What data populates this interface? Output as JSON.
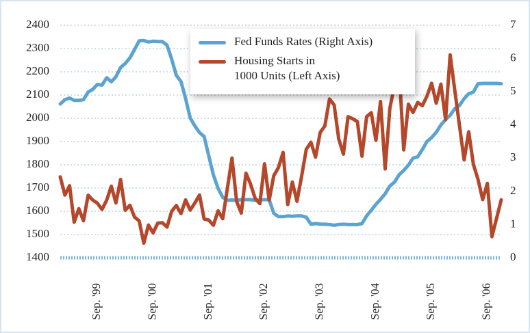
{
  "chart_data": {
    "type": "line",
    "categories": [
      null,
      null,
      null,
      null,
      null,
      null,
      null,
      null,
      "Sep. '99",
      null,
      null,
      null,
      null,
      null,
      null,
      null,
      null,
      null,
      null,
      null,
      "Sep. '00",
      null,
      null,
      null,
      null,
      null,
      null,
      null,
      null,
      null,
      null,
      null,
      "Sep. '01",
      null,
      null,
      null,
      null,
      null,
      null,
      null,
      null,
      null,
      null,
      null,
      "Sep. '02",
      null,
      null,
      null,
      null,
      null,
      null,
      null,
      null,
      null,
      null,
      null,
      "Sep. '03",
      null,
      null,
      null,
      null,
      null,
      null,
      null,
      null,
      null,
      null,
      null,
      "Sep. '04",
      null,
      null,
      null,
      null,
      null,
      null,
      null,
      null,
      null,
      null,
      null,
      "Sep. '05",
      null,
      null,
      null,
      null,
      null,
      null,
      null,
      null,
      null,
      null,
      null,
      "Sep. '06",
      null,
      null,
      null
    ],
    "series": [
      {
        "name": "Fed Funds Rates (Right Axis)",
        "color": "#5ba3d1",
        "axis": "y2",
        "values": [
          4.63,
          4.76,
          4.81,
          4.74,
          4.74,
          4.76,
          4.99,
          5.07,
          5.22,
          5.2,
          5.42,
          5.3,
          5.45,
          5.73,
          5.85,
          6.02,
          6.27,
          6.53,
          6.54,
          6.5,
          6.52,
          6.51,
          6.51,
          6.4,
          5.98,
          5.49,
          5.31,
          4.8,
          4.21,
          3.97,
          3.77,
          3.65,
          3.07,
          2.49,
          2.09,
          1.82,
          1.73,
          1.74,
          1.73,
          1.75,
          1.75,
          1.75,
          1.73,
          1.74,
          1.75,
          1.75,
          1.34,
          1.24,
          1.24,
          1.26,
          1.25,
          1.26,
          1.26,
          1.22,
          1.01,
          1.03,
          1.01,
          1.01,
          1.0,
          0.98,
          1.0,
          1.01,
          1.0,
          1.0,
          1.0,
          1.03,
          1.26,
          1.43,
          1.61,
          1.76,
          1.93,
          2.16,
          2.28,
          2.5,
          2.63,
          2.79,
          3.0,
          3.04,
          3.26,
          3.5,
          3.62,
          3.78,
          4.0,
          4.16,
          4.29,
          4.49,
          4.59,
          4.79,
          4.94,
          4.99,
          5.24,
          5.25,
          5.25,
          5.25,
          5.25,
          5.24
        ]
      },
      {
        "name": "Housing Starts in\n1000 Units (Left Axis)",
        "color": "#b5472b",
        "axis": "y",
        "values": [
          1748,
          1670,
          1710,
          1553,
          1611,
          1559,
          1669,
          1648,
          1635,
          1608,
          1648,
          1708,
          1636,
          1737,
          1604,
          1626,
          1575,
          1559,
          1463,
          1541,
          1507,
          1549,
          1551,
          1532,
          1600,
          1625,
          1590,
          1649,
          1605,
          1636,
          1670,
          1567,
          1562,
          1540,
          1602,
          1568,
          1698,
          1829,
          1642,
          1592,
          1764,
          1717,
          1655,
          1633,
          1804,
          1648,
          1753,
          1788,
          1853,
          1629,
          1726,
          1643,
          1751,
          1867,
          1897,
          1833,
          1939,
          1967,
          2083,
          2057,
          1911,
          1846,
          2007,
          1998,
          1986,
          1837,
          2007,
          2024,
          1905,
          2072,
          1782,
          2042,
          2144,
          2207,
          1864,
          2061,
          2025,
          2068,
          2054,
          2095,
          2151,
          2065,
          2147,
          1994,
          2273,
          2119,
          1969,
          1821,
          1942,
          1802,
          1737,
          1650,
          1720,
          1491,
          1570,
          1649
        ]
      }
    ],
    "ylim": [
      1400,
      2400
    ],
    "yticks": [
      1400,
      1500,
      1600,
      1700,
      1800,
      1900,
      2000,
      2100,
      2200,
      2300,
      2400
    ],
    "y2lim": [
      0,
      7
    ],
    "y2ticks": [
      0,
      1,
      2,
      3,
      4,
      5,
      6,
      7
    ],
    "grid": true,
    "legend": "top"
  }
}
